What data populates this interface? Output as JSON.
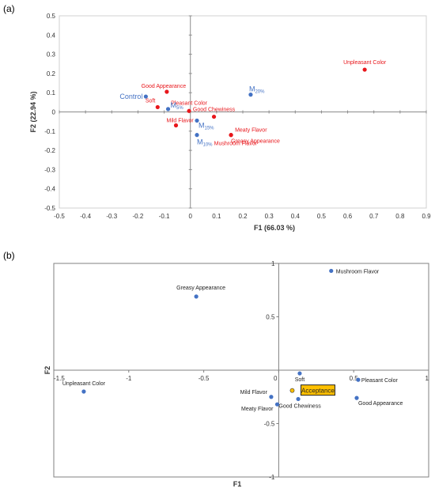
{
  "chart_data": [
    {
      "panel": "(a)",
      "type": "scatter",
      "xlabel": "F1 (66.03 %)",
      "ylabel": "F2 (22.94 %)",
      "xlim": [
        -0.5,
        0.9
      ],
      "ylim": [
        -0.5,
        0.5
      ],
      "xticks": [
        -0.5,
        -0.4,
        -0.3,
        -0.2,
        -0.1,
        0,
        0.1,
        0.2,
        0.3,
        0.4,
        0.5,
        0.6,
        0.7,
        0.8,
        0.9
      ],
      "yticks": [
        -0.5,
        -0.4,
        -0.3,
        -0.2,
        -0.1,
        0,
        0.1,
        0.2,
        0.3,
        0.4,
        0.5
      ],
      "series": [
        {
          "color": "#4472c4",
          "points": [
            {
              "label": "Control",
              "sub": "",
              "x": -0.17,
              "y": 0.08
            },
            {
              "label": "M",
              "sub": "5%",
              "x": -0.085,
              "y": 0.015
            },
            {
              "label": "M",
              "sub": "20%",
              "x": 0.23,
              "y": 0.09
            },
            {
              "label": "M",
              "sub": "15%",
              "x": 0.025,
              "y": -0.045
            },
            {
              "label": "M",
              "sub": "10%",
              "x": 0.025,
              "y": -0.12
            }
          ]
        },
        {
          "color": "#e8161b",
          "points": [
            {
              "label": "Unpleasant Color",
              "x": 0.665,
              "y": 0.22
            },
            {
              "label": "Good Appearance",
              "x": -0.09,
              "y": 0.105
            },
            {
              "label": "Soft",
              "x": -0.125,
              "y": 0.025
            },
            {
              "label": "Pleasant Color",
              "x": -0.005,
              "y": 0.005
            },
            {
              "label": "Good Chewiness",
              "x": 0.09,
              "y": -0.025
            },
            {
              "label": "Mild Flavor",
              "x": -0.055,
              "y": -0.07
            },
            {
              "label": "Mushroom Flavor",
              "x": 0.03,
              "y": -0.12
            },
            {
              "label": "Meaty Flavor",
              "x": 0.155,
              "y": -0.12
            },
            {
              "label": "Greasy Appearance",
              "x": 0.155,
              "y": -0.12
            }
          ]
        }
      ]
    },
    {
      "panel": "(b)",
      "type": "scatter",
      "xlabel": "F1",
      "ylabel": "F2",
      "xlim": [
        -1.5,
        1
      ],
      "ylim": [
        -1,
        1
      ],
      "xticks": [
        -1.5,
        -1,
        -0.5,
        0,
        0.5,
        1
      ],
      "yticks": [
        -1,
        -0.5,
        0,
        0.5,
        1
      ],
      "point_color": "#4472c4",
      "highlight_color": "#ffc000",
      "points": [
        {
          "label": "Mushroom Flavor",
          "x": 0.35,
          "y": 0.93
        },
        {
          "label": "Greasy Appearance",
          "x": -0.55,
          "y": 0.69
        },
        {
          "label": "Unpleasant Color",
          "x": -1.3,
          "y": -0.2
        },
        {
          "label": "Soft",
          "x": 0.14,
          "y": -0.03
        },
        {
          "label": "Pleasant Color",
          "x": 0.53,
          "y": -0.09
        },
        {
          "label": "Good Appearance",
          "x": 0.52,
          "y": -0.26
        },
        {
          "label": "Good Chewiness",
          "x": 0.13,
          "y": -0.27
        },
        {
          "label": "Mild Flavor",
          "x": -0.05,
          "y": -0.25
        },
        {
          "label": "Meaty Flavor",
          "x": -0.01,
          "y": -0.32
        }
      ],
      "highlight": {
        "label": "Acceptance",
        "x": 0.09,
        "y": -0.19
      }
    }
  ]
}
